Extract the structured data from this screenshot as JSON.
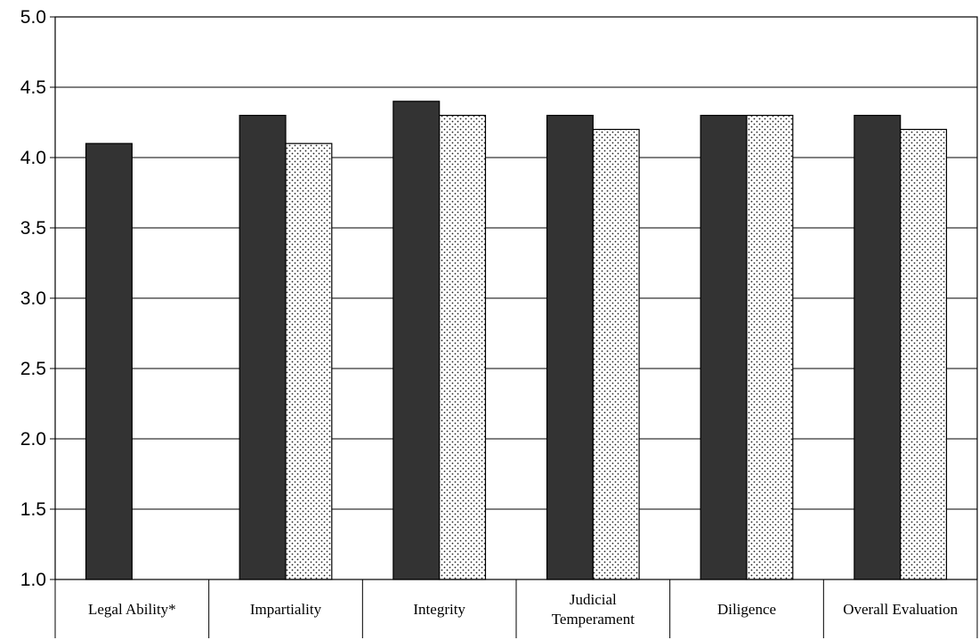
{
  "chart_data": {
    "type": "bar",
    "categories": [
      "Legal Ability*",
      "Impartiality",
      "Integrity",
      "Judicial Temperament",
      "Diligence",
      "Overall Evaluation"
    ],
    "category_lines": [
      [
        "Legal Ability*"
      ],
      [
        "Impartiality"
      ],
      [
        "Integrity"
      ],
      [
        "Judicial",
        "Temperament"
      ],
      [
        "Diligence"
      ],
      [
        "Overall Evaluation"
      ]
    ],
    "series": [
      {
        "values": [
          4.1,
          4.3,
          4.4,
          4.3,
          4.3,
          4.3
        ],
        "fill": "dark",
        "color": "#333333"
      },
      {
        "values": [
          null,
          4.1,
          4.3,
          4.2,
          4.3,
          4.2
        ],
        "fill": "dotted",
        "color": "#ffffff"
      }
    ],
    "yticks": [
      "1.0",
      "1.5",
      "2.0",
      "2.5",
      "3.0",
      "3.5",
      "4.0",
      "4.5",
      "5.0"
    ],
    "ylim": [
      1.0,
      5.0
    ],
    "grid": true,
    "title": "",
    "xlabel": "",
    "ylabel": ""
  }
}
